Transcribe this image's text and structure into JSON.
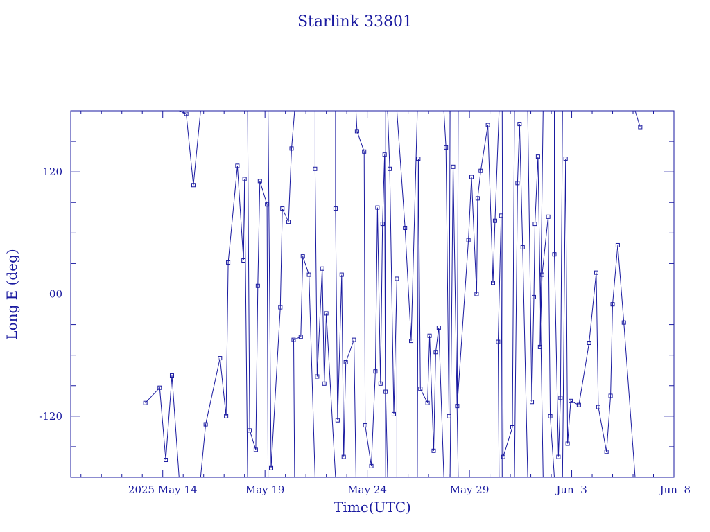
{
  "chart_data": {
    "type": "line",
    "title": "Starlink 33801",
    "xlabel": "Time(UTC)",
    "ylabel": "Long E (deg)",
    "x_unit": "day of 2025",
    "xlim": [
      129.5,
      159.0
    ],
    "ylim": [
      -180,
      180
    ],
    "x_tick_labels": [
      {
        "x": 134,
        "label": "2025 May 14"
      },
      {
        "x": 139,
        "label": "May 19"
      },
      {
        "x": 144,
        "label": "May 24"
      },
      {
        "x": 149,
        "label": "May 29"
      },
      {
        "x": 154,
        "label": "Jun  3"
      },
      {
        "x": 159,
        "label": "Jun  8"
      }
    ],
    "y_tick_labels": [
      {
        "y": 120,
        "label": "120"
      },
      {
        "y": 0,
        "label": "00"
      },
      {
        "y": -120,
        "label": "-120"
      }
    ],
    "series": [
      {
        "color": "#1a1aa0",
        "marker": "square",
        "points": [
          [
            133.15,
            -107
          ],
          [
            133.85,
            -92
          ],
          [
            134.15,
            -163
          ],
          [
            134.45,
            -80
          ],
          [
            134.8,
            -180
          ],
          [
            134.8,
            180
          ],
          [
            135.15,
            177
          ],
          [
            135.5,
            107
          ],
          [
            135.85,
            180
          ],
          [
            135.85,
            -180
          ],
          [
            136.1,
            -128
          ],
          [
            136.8,
            -63
          ],
          [
            137.1,
            -120
          ],
          [
            137.2,
            31
          ],
          [
            137.65,
            126
          ],
          [
            137.95,
            33
          ],
          [
            138.0,
            113
          ],
          [
            138.15,
            -180
          ],
          [
            138.15,
            180
          ],
          [
            138.25,
            -134
          ],
          [
            138.55,
            -153
          ],
          [
            138.65,
            8
          ],
          [
            138.75,
            111
          ],
          [
            139.1,
            88
          ],
          [
            139.15,
            -180
          ],
          [
            139.15,
            180
          ],
          [
            139.3,
            -171
          ],
          [
            139.75,
            -13
          ],
          [
            139.85,
            84
          ],
          [
            140.15,
            71
          ],
          [
            140.3,
            143
          ],
          [
            140.45,
            180
          ],
          [
            140.45,
            -180
          ],
          [
            140.4,
            -45
          ],
          [
            140.75,
            -42
          ],
          [
            140.85,
            37
          ],
          [
            141.15,
            19
          ],
          [
            141.45,
            -180
          ],
          [
            141.45,
            180
          ],
          [
            141.45,
            123
          ],
          [
            141.55,
            -81
          ],
          [
            141.8,
            25
          ],
          [
            141.9,
            -88
          ],
          [
            142.0,
            -19
          ],
          [
            142.45,
            -180
          ],
          [
            142.45,
            180
          ],
          [
            142.45,
            84
          ],
          [
            142.55,
            -124
          ],
          [
            142.75,
            19
          ],
          [
            142.85,
            -160
          ],
          [
            142.95,
            -67
          ],
          [
            143.35,
            -45
          ],
          [
            143.45,
            -180
          ],
          [
            143.45,
            180
          ],
          [
            143.5,
            160
          ],
          [
            143.85,
            140
          ],
          [
            143.9,
            -129
          ],
          [
            144.2,
            -169
          ],
          [
            144.4,
            -76
          ],
          [
            144.5,
            85
          ],
          [
            144.65,
            -88
          ],
          [
            144.75,
            69
          ],
          [
            144.85,
            137
          ],
          [
            144.9,
            -180
          ],
          [
            144.9,
            180
          ],
          [
            144.9,
            -96
          ],
          [
            145.0,
            -180
          ],
          [
            145.0,
            180
          ],
          [
            145.1,
            123
          ],
          [
            145.3,
            -118
          ],
          [
            145.45,
            15
          ],
          [
            145.45,
            -180
          ],
          [
            145.45,
            180
          ],
          [
            145.85,
            65
          ],
          [
            146.15,
            -46
          ],
          [
            146.45,
            180
          ],
          [
            146.45,
            -180
          ],
          [
            146.5,
            133
          ],
          [
            146.6,
            -93
          ],
          [
            146.95,
            -107
          ],
          [
            147.05,
            -41
          ],
          [
            147.25,
            -154
          ],
          [
            147.35,
            -57
          ],
          [
            147.5,
            -33
          ],
          [
            147.75,
            -180
          ],
          [
            147.75,
            180
          ],
          [
            147.85,
            144
          ],
          [
            148.0,
            -120
          ],
          [
            148.05,
            180
          ],
          [
            148.05,
            -180
          ],
          [
            148.2,
            125
          ],
          [
            148.45,
            -180
          ],
          [
            148.45,
            180
          ],
          [
            148.4,
            -110
          ],
          [
            148.95,
            53
          ],
          [
            149.1,
            115
          ],
          [
            149.35,
            0
          ],
          [
            149.4,
            94
          ],
          [
            149.55,
            121
          ],
          [
            149.9,
            166
          ],
          [
            150.15,
            11
          ],
          [
            150.25,
            72
          ],
          [
            150.45,
            180
          ],
          [
            150.45,
            -180
          ],
          [
            150.4,
            -47
          ],
          [
            150.55,
            77
          ],
          [
            150.6,
            -180
          ],
          [
            150.6,
            180
          ],
          [
            150.65,
            -160
          ],
          [
            151.1,
            -131
          ],
          [
            151.2,
            180
          ],
          [
            151.2,
            -180
          ],
          [
            151.35,
            109
          ],
          [
            151.45,
            167
          ],
          [
            151.6,
            46
          ],
          [
            151.85,
            -180
          ],
          [
            151.85,
            180
          ],
          [
            152.05,
            -106
          ],
          [
            152.15,
            -3
          ],
          [
            152.2,
            69
          ],
          [
            152.35,
            135
          ],
          [
            152.6,
            -180
          ],
          [
            152.6,
            180
          ],
          [
            152.45,
            -52
          ],
          [
            152.55,
            19
          ],
          [
            152.85,
            76
          ],
          [
            152.95,
            -120
          ],
          [
            153.15,
            -180
          ],
          [
            153.15,
            180
          ],
          [
            153.15,
            39
          ],
          [
            153.35,
            -160
          ],
          [
            153.45,
            -102
          ],
          [
            153.55,
            180
          ],
          [
            153.55,
            -180
          ],
          [
            153.7,
            133
          ],
          [
            153.8,
            -147
          ],
          [
            153.95,
            -105
          ],
          [
            154.35,
            -109
          ],
          [
            154.85,
            -48
          ],
          [
            155.2,
            21
          ],
          [
            155.3,
            -111
          ],
          [
            155.7,
            -155
          ],
          [
            155.9,
            -100
          ],
          [
            156.0,
            -10
          ],
          [
            156.25,
            48
          ],
          [
            156.55,
            -28
          ],
          [
            157.1,
            -180
          ],
          [
            157.1,
            180
          ],
          [
            157.35,
            164
          ]
        ]
      }
    ]
  }
}
